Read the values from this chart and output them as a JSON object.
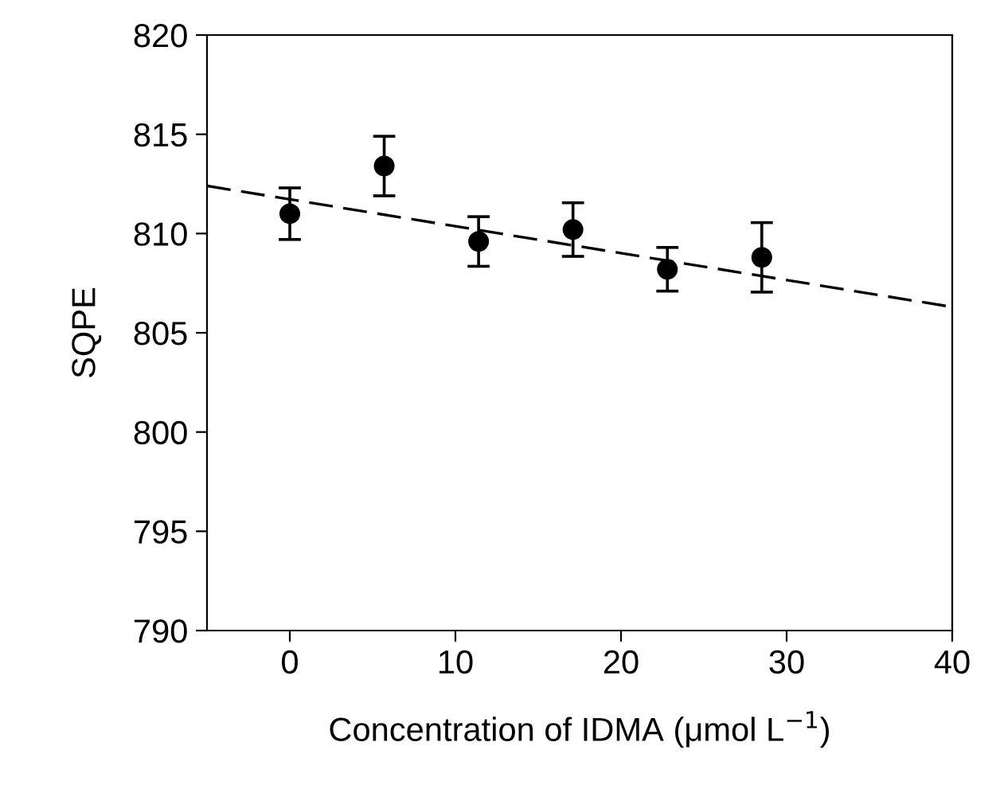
{
  "chart_data": {
    "type": "scatter",
    "xlabel": "Concentration of IDMA (μmol L$^{−1}$)",
    "ylabel": "SQPE",
    "xlim": [
      -5,
      40
    ],
    "xticks": [
      0,
      10,
      20,
      30,
      40
    ],
    "ylim": [
      790,
      820
    ],
    "yticks": [
      790,
      795,
      800,
      805,
      810,
      815,
      820
    ],
    "grid": false,
    "legend": false,
    "series": [
      {
        "color": "#000000",
        "marker": "circle",
        "x": [
          0,
          5.7,
          11.4,
          17.1,
          22.8,
          28.5
        ],
        "values": [
          811.0,
          813.4,
          809.6,
          810.2,
          808.2,
          808.8
        ],
        "errors": [
          1.3,
          1.5,
          1.25,
          1.35,
          1.1,
          1.75
        ]
      },
      {
        "type": "line",
        "color": "#000000",
        "marker": "none",
        "line_style": "dashed",
        "x": [
          -5,
          40
        ],
        "values": [
          812.4,
          806.3
        ]
      }
    ]
  }
}
